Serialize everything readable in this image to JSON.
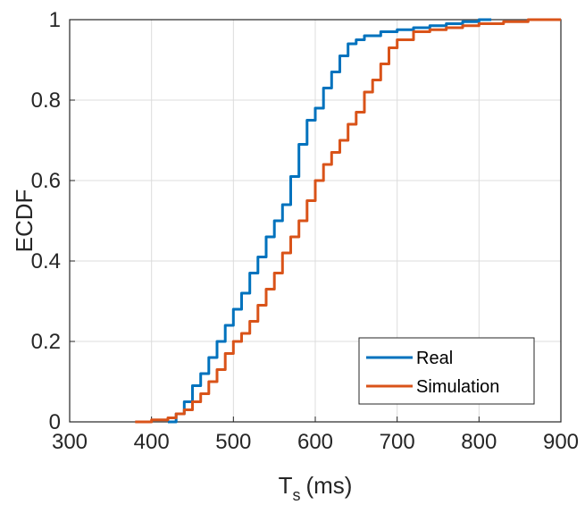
{
  "chart_data": {
    "type": "line",
    "title": "",
    "xlabel": {
      "main": "T",
      "sub": "s",
      "unit": "(ms)"
    },
    "ylabel": "ECDF",
    "xlim": [
      300,
      900
    ],
    "ylim": [
      0,
      1
    ],
    "xticks": [
      "300",
      "400",
      "500",
      "600",
      "700",
      "800",
      "900"
    ],
    "yticks": [
      "0",
      "0.2",
      "0.4",
      "0.6",
      "0.8",
      "1"
    ],
    "grid": true,
    "legend": "bottom-right",
    "series": [
      {
        "name": "Real",
        "color": "#0072BD",
        "x": [
          420,
          430,
          440,
          450,
          460,
          470,
          480,
          490,
          500,
          510,
          520,
          530,
          540,
          550,
          560,
          570,
          580,
          590,
          600,
          610,
          620,
          630,
          640,
          650,
          660,
          680,
          700,
          720,
          740,
          760,
          780,
          800,
          815
        ],
        "y": [
          0.0,
          0.02,
          0.05,
          0.09,
          0.12,
          0.16,
          0.2,
          0.24,
          0.28,
          0.32,
          0.37,
          0.41,
          0.46,
          0.5,
          0.54,
          0.61,
          0.69,
          0.75,
          0.78,
          0.83,
          0.87,
          0.91,
          0.94,
          0.95,
          0.96,
          0.97,
          0.975,
          0.98,
          0.985,
          0.99,
          0.995,
          1.0,
          1.0
        ]
      },
      {
        "name": "Simulation",
        "color": "#D95319",
        "x": [
          380,
          400,
          420,
          430,
          440,
          450,
          460,
          470,
          480,
          490,
          500,
          510,
          520,
          530,
          540,
          550,
          560,
          570,
          580,
          590,
          600,
          610,
          620,
          630,
          640,
          650,
          660,
          670,
          680,
          690,
          700,
          720,
          740,
          760,
          780,
          800,
          830,
          860,
          900
        ],
        "y": [
          0.0,
          0.005,
          0.01,
          0.02,
          0.03,
          0.05,
          0.07,
          0.1,
          0.13,
          0.17,
          0.2,
          0.22,
          0.25,
          0.29,
          0.33,
          0.37,
          0.42,
          0.46,
          0.5,
          0.55,
          0.6,
          0.64,
          0.67,
          0.7,
          0.74,
          0.77,
          0.82,
          0.85,
          0.89,
          0.93,
          0.95,
          0.97,
          0.975,
          0.98,
          0.985,
          0.99,
          0.995,
          1.0,
          1.0
        ]
      }
    ]
  }
}
